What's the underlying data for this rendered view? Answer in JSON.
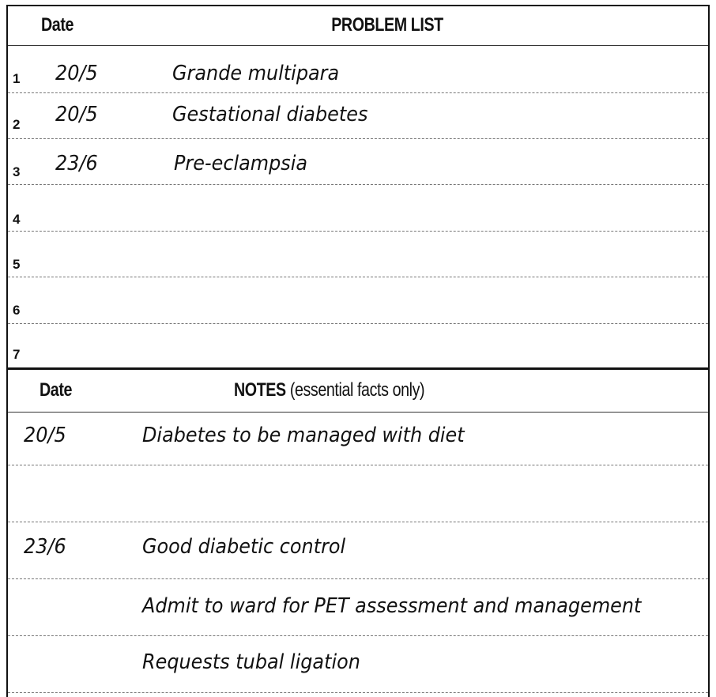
{
  "problem_list": {
    "date_header": "Date",
    "title": "PROBLEM LIST",
    "rows": [
      {
        "num": "1",
        "date": "20/5",
        "problem": "Grande multipara"
      },
      {
        "num": "2",
        "date": "20/5",
        "problem": "Gestational diabetes"
      },
      {
        "num": "3",
        "date": "23/6",
        "problem": "Pre-eclampsia"
      },
      {
        "num": "4",
        "date": "",
        "problem": ""
      },
      {
        "num": "5",
        "date": "",
        "problem": ""
      },
      {
        "num": "6",
        "date": "",
        "problem": ""
      },
      {
        "num": "7",
        "date": "",
        "problem": ""
      }
    ]
  },
  "notes": {
    "date_header": "Date",
    "title": "NOTES",
    "title_suffix": "(essential facts only)",
    "rows": [
      {
        "date": "20/5",
        "note": "Diabetes to be managed with diet"
      },
      {
        "date": "",
        "note": ""
      },
      {
        "date": "23/6",
        "note": "Good diabetic control"
      },
      {
        "date": "",
        "note": "Admit to ward for PET assessment and management"
      },
      {
        "date": "",
        "note": "Requests tubal ligation"
      }
    ]
  }
}
